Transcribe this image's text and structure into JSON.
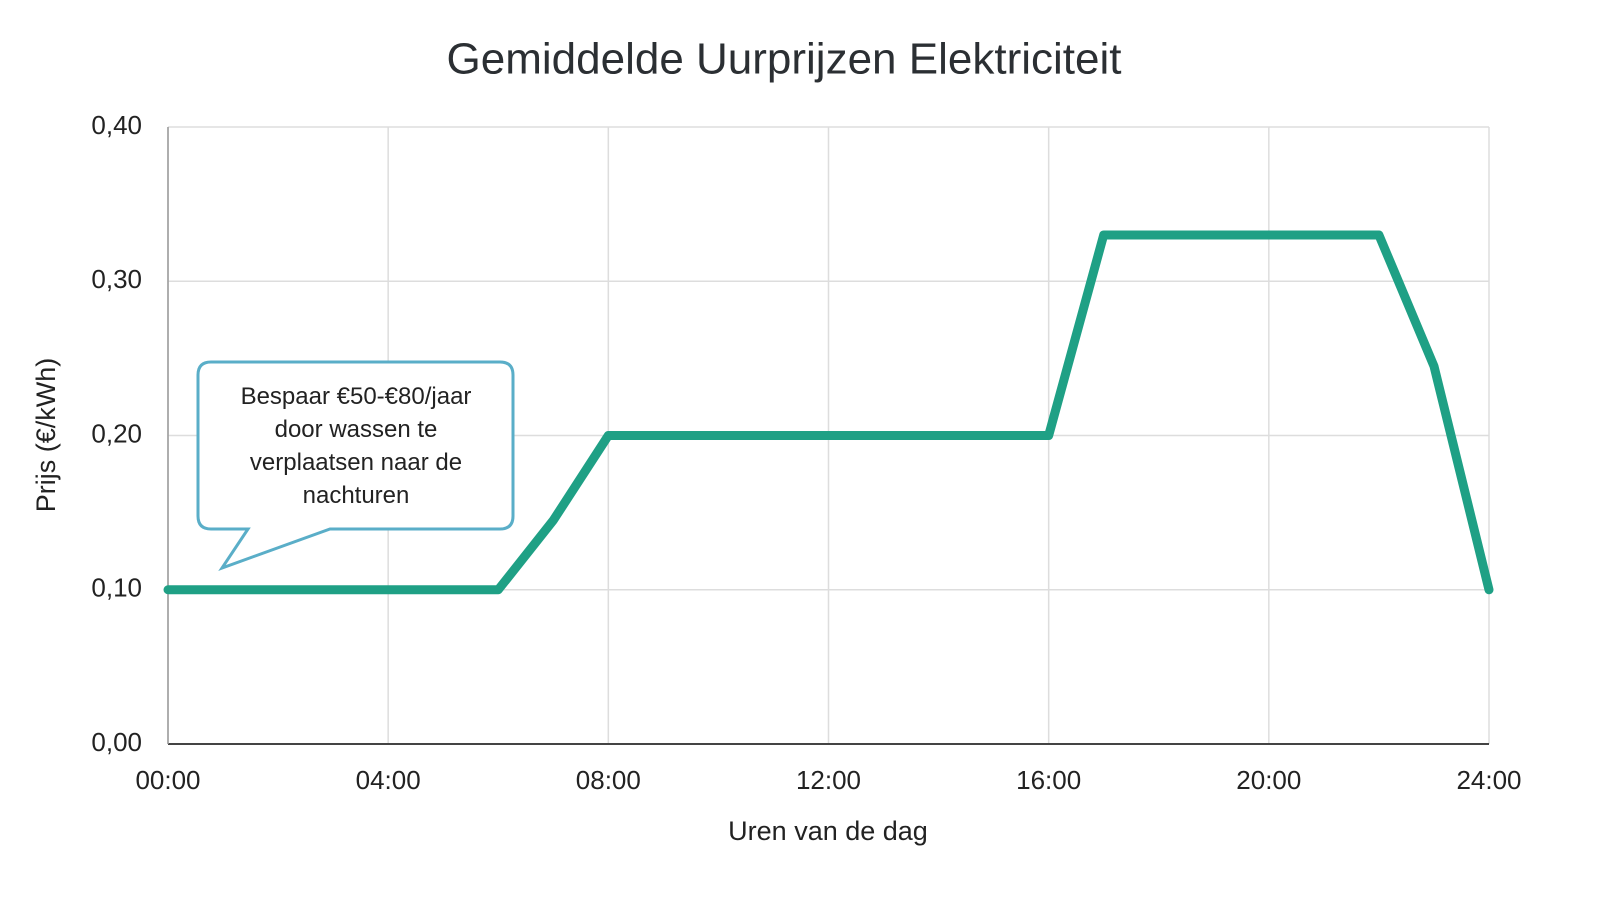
{
  "chart_data": {
    "type": "line",
    "title": "Gemiddelde Uurprijzen Elektriciteit",
    "x_label": "Uren van de dag",
    "y_label": "Prijs (€/kWh)",
    "x": [
      0,
      6,
      7,
      8,
      16,
      17,
      22,
      23,
      24
    ],
    "values": [
      0.1,
      0.1,
      0.145,
      0.2,
      0.2,
      0.33,
      0.33,
      0.245,
      0.1
    ],
    "color": "#1fa085",
    "xlim": [
      0,
      24
    ],
    "xticks": [
      {
        "value": 0,
        "label": "00:00"
      },
      {
        "value": 4,
        "label": "04:00"
      },
      {
        "value": 8,
        "label": "08:00"
      },
      {
        "value": 12,
        "label": "12:00"
      },
      {
        "value": 16,
        "label": "16:00"
      },
      {
        "value": 20,
        "label": "20:00"
      },
      {
        "value": 24,
        "label": "24:00"
      }
    ],
    "ylim": [
      0,
      0.4
    ],
    "yticks": [
      {
        "value": 0,
        "label": "0,00"
      },
      {
        "value": 0.1,
        "label": "0,10"
      },
      {
        "value": 0.2,
        "label": "0,20"
      },
      {
        "value": 0.3,
        "label": "0,30"
      },
      {
        "value": 0.4,
        "label": "0,40"
      }
    ],
    "grid": true,
    "annotation": "Bespaar €50-€80/jaar door wassen te verplaatsen naar de nachturen"
  }
}
